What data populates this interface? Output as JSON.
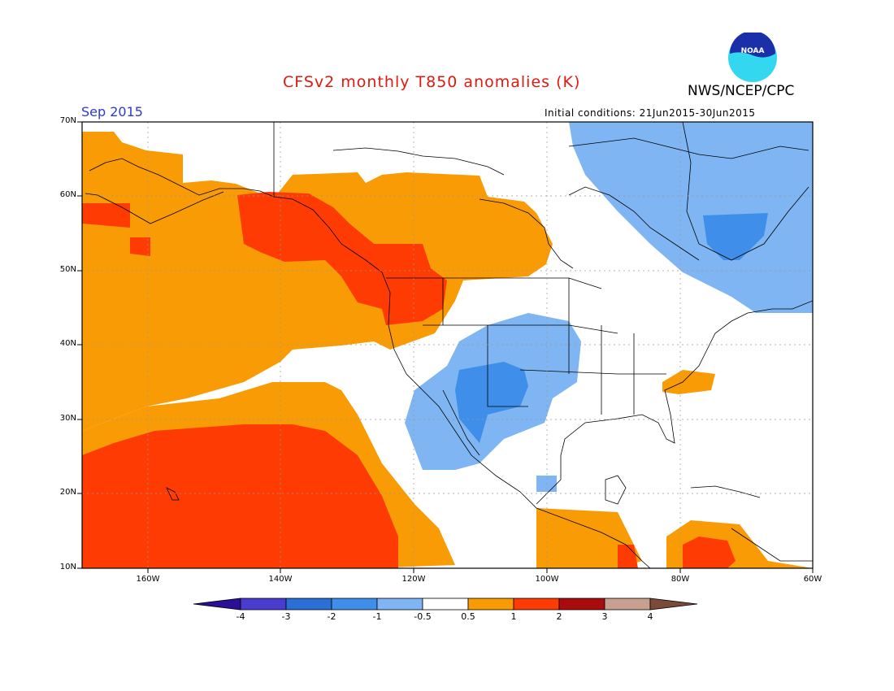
{
  "header": {
    "title": "CFSv2 monthly T850 anomalies (K)",
    "agency": "NWS/NCEP/CPC",
    "month": "Sep 2015",
    "initial_conditions": "Initial conditions: 21Jun2015-30Jun2015",
    "logo_text": "NOAA"
  },
  "map": {
    "lat_labels": [
      "70N",
      "60N",
      "50N",
      "40N",
      "30N",
      "20N",
      "10N"
    ],
    "lon_labels": [
      "160W",
      "140W",
      "120W",
      "100W",
      "80W",
      "60W"
    ],
    "extent": {
      "lon_min": -170,
      "lon_max": -60,
      "lat_min": 10,
      "lat_max": 70
    }
  },
  "legend": {
    "labels": [
      "-4",
      "-3",
      "-2",
      "-1",
      "-0.5",
      "0.5",
      "1",
      "2",
      "3",
      "4"
    ],
    "colors": [
      "#2a0f97",
      "#4a3ccf",
      "#2b6fd6",
      "#3f8fea",
      "#7fb5f2",
      "#ffffff",
      "#f99b05",
      "#fe3b03",
      "#a90c0c",
      "#c8a090",
      "#7a4a3a"
    ]
  }
}
